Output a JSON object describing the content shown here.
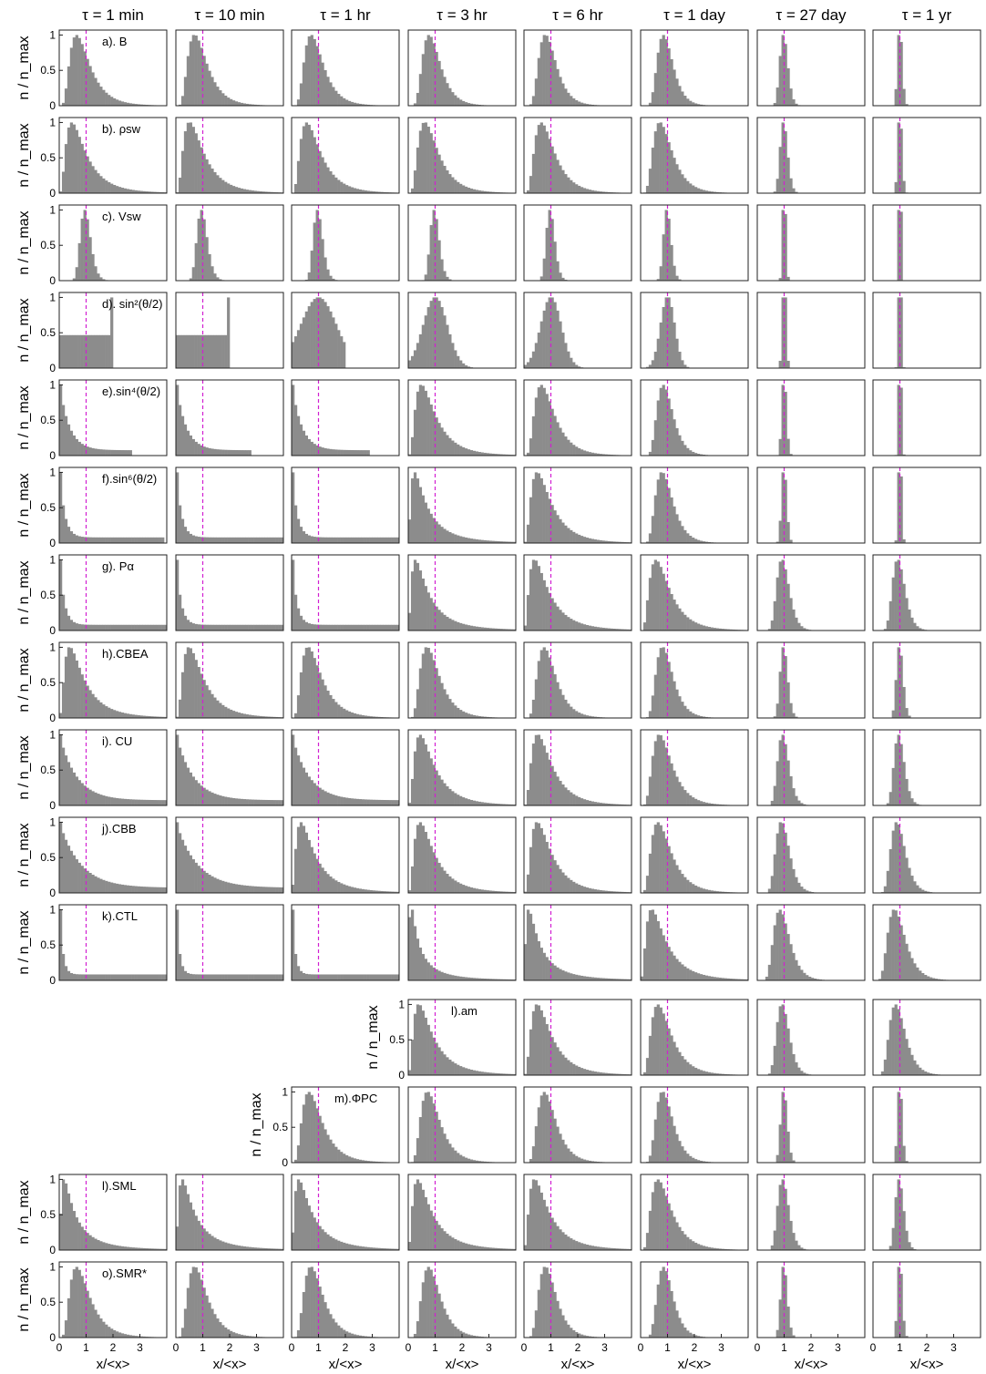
{
  "chart_data": {
    "type": "bar",
    "title": "",
    "description_columns": "Histograms of normalized solar-wind / coupling quantities at eight averaging timescales",
    "columns": [
      "τ = 1 min",
      "τ = 10 min",
      "τ = 1 hr",
      "τ = 3 hr",
      "τ = 6 hr",
      "τ = 1 day",
      "τ = 27 day",
      "τ = 1 yr"
    ],
    "ylabel": "n / n_max",
    "xlabel": "x/<x>",
    "xlim": [
      0,
      4
    ],
    "ylim": [
      0,
      1.05
    ],
    "xticks": [
      "0",
      "1",
      "2",
      "3"
    ],
    "yticks": [
      "0",
      "0.5",
      "1"
    ],
    "reference_line": {
      "x": 1,
      "color": "#d21ed2",
      "style": "dashed"
    },
    "bar_color": "#8c8c8c",
    "rows": [
      {
        "label": "a). B",
        "avail": [
          1,
          1,
          1,
          1,
          1,
          1,
          1,
          1
        ]
      },
      {
        "label": "b). ρsw",
        "avail": [
          1,
          1,
          1,
          1,
          1,
          1,
          1,
          1
        ]
      },
      {
        "label": "c). Vsw",
        "avail": [
          1,
          1,
          1,
          1,
          1,
          1,
          1,
          1
        ]
      },
      {
        "label": "d). sin²(θ/2)",
        "avail": [
          1,
          1,
          1,
          1,
          1,
          1,
          1,
          1
        ]
      },
      {
        "label": "e).sin⁴(θ/2)",
        "avail": [
          1,
          1,
          1,
          1,
          1,
          1,
          1,
          1
        ]
      },
      {
        "label": "f).sin⁶(θ/2)",
        "avail": [
          1,
          1,
          1,
          1,
          1,
          1,
          1,
          1
        ]
      },
      {
        "label": "g). Pα",
        "avail": [
          1,
          1,
          1,
          1,
          1,
          1,
          1,
          1
        ]
      },
      {
        "label": "h).CBEA",
        "avail": [
          1,
          1,
          1,
          1,
          1,
          1,
          1,
          1
        ]
      },
      {
        "label": "i). CU",
        "avail": [
          1,
          1,
          1,
          1,
          1,
          1,
          1,
          1
        ]
      },
      {
        "label": "j).CBB",
        "avail": [
          1,
          1,
          1,
          1,
          1,
          1,
          1,
          1
        ]
      },
      {
        "label": "k).CTL",
        "avail": [
          1,
          1,
          1,
          1,
          1,
          1,
          1,
          1
        ]
      },
      {
        "label": "l).am",
        "avail": [
          0,
          0,
          0,
          1,
          1,
          1,
          1,
          1
        ]
      },
      {
        "label": "m).ΦPC",
        "avail": [
          0,
          0,
          1,
          1,
          1,
          1,
          1,
          1
        ]
      },
      {
        "label": "l).SML",
        "avail": [
          1,
          1,
          1,
          1,
          1,
          1,
          1,
          1
        ]
      },
      {
        "label": "o).SMR*",
        "avail": [
          1,
          1,
          1,
          1,
          1,
          1,
          1,
          1
        ]
      }
    ]
  }
}
